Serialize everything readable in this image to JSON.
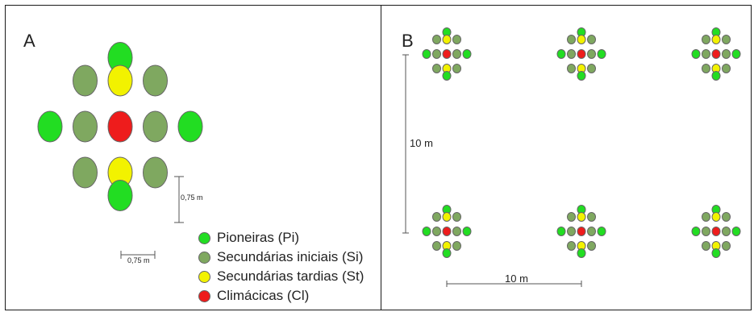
{
  "panel_a": {
    "letter": "A",
    "scale_vertical": "0,75 m",
    "scale_horizontal": "0,75 m"
  },
  "panel_b": {
    "letter": "B",
    "scale_vertical": "10 m",
    "scale_horizontal": "10 m"
  },
  "legend": [
    {
      "label": "Pioneiras (Pi)",
      "color": "#22dd22"
    },
    {
      "label": "Secundárias iniciais (Si)",
      "color": "#7fa860"
    },
    {
      "label": "Secundárias tardias (St)",
      "color": "#f2f200"
    },
    {
      "label": "Climácicas (Cl)",
      "color": "#ee1c1c"
    }
  ],
  "pattern": [
    {
      "type": "Pi",
      "col": 0,
      "row": -3
    },
    {
      "type": "Si",
      "col": -1,
      "row": -2
    },
    {
      "type": "St",
      "col": 0,
      "row": -2
    },
    {
      "type": "Si",
      "col": 1,
      "row": -2
    },
    {
      "type": "Pi",
      "col": -2,
      "row": 0
    },
    {
      "type": "Si",
      "col": -1,
      "row": 0
    },
    {
      "type": "Cl",
      "col": 0,
      "row": 0
    },
    {
      "type": "Si",
      "col": 1,
      "row": 0
    },
    {
      "type": "Pi",
      "col": 2,
      "row": 0
    },
    {
      "type": "Si",
      "col": -1,
      "row": 2
    },
    {
      "type": "St",
      "col": 0,
      "row": 2
    },
    {
      "type": "Si",
      "col": 1,
      "row": 2
    },
    {
      "type": "Pi",
      "col": 0,
      "row": 3
    }
  ],
  "colors": {
    "Pi": "#22dd22",
    "Si": "#7fa860",
    "St": "#f2f200",
    "Cl": "#ee1c1c",
    "stroke": "#666666"
  }
}
